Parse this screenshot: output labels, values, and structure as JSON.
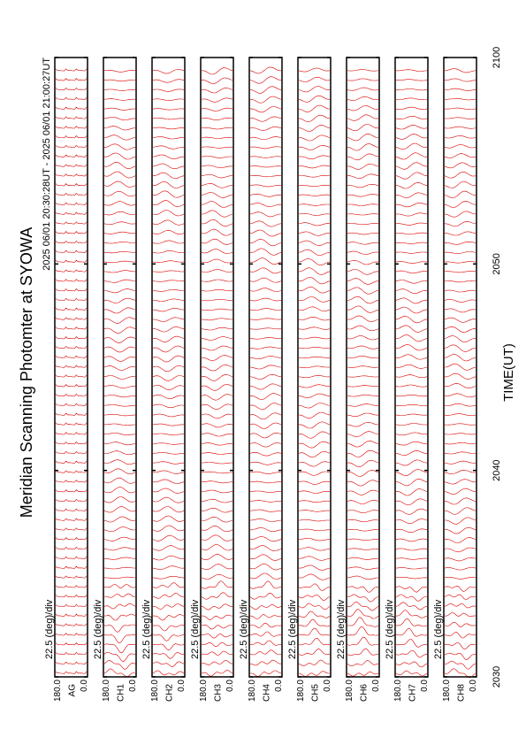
{
  "chart_data": {
    "type": "stackplot",
    "title": "Meridian Scanning Photomter at SYOWA",
    "subtitle": "2025 06/01 20:30:28UT - 2025 06/01 21:00:27UT",
    "xlabel": "TIME(UT)",
    "xlim": [
      30,
      60
    ],
    "xticks": [
      {
        "value": 30,
        "label": "2030"
      },
      {
        "value": 40,
        "label": "2040"
      },
      {
        "value": 50,
        "label": "2050"
      },
      {
        "value": 60,
        "label": "2100"
      }
    ],
    "ylim": [
      0,
      180
    ],
    "yticks": [
      {
        "value": 0,
        "label": "0.0"
      },
      {
        "value": 180,
        "label": "180.0"
      }
    ],
    "scale_label": "22.5 (deg)/div",
    "panels": [
      "AG",
      "CH1",
      "CH2",
      "CH3",
      "CH4",
      "CH5",
      "CH6",
      "CH7",
      "CH8"
    ],
    "color": "#dd0000"
  }
}
